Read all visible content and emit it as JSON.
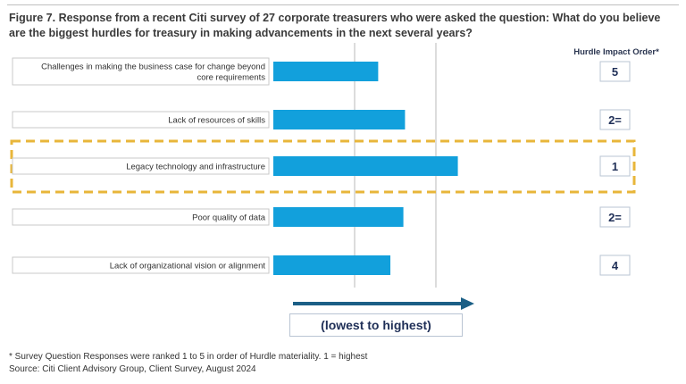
{
  "figure": {
    "title": "Figure 7. Response from a recent Citi survey of 27 corporate treasurers who were asked the question: What do you believe are the biggest hurdles for treasury in making advancements in the next several years?",
    "order_header": "Hurdle Impact Order*",
    "axis_caption": "(lowest to highest)",
    "footnote": "* Survey Question Responses were ranked 1 to 5 in order of Hurdle materiality. 1 = highest",
    "source": "Source: Citi Client Advisory Group, Client Survey, August 2024"
  },
  "colors": {
    "bar": "#12a0dc",
    "highlight": "#e8b63a",
    "arrow": "#1b5f86",
    "grid": "#b8b8b8",
    "label_box_border": "#b9c4d3",
    "order_box_border": "#b9c4d3",
    "order_text": "#1f2f57"
  },
  "chart_data": {
    "type": "bar",
    "orientation": "horizontal",
    "categories": [
      "Challenges in making the business case for change beyond core requirements",
      "Lack of resources of skills",
      "Legacy technology and infrastructure",
      "Poor quality of data",
      "Lack of organizational vision or alignment"
    ],
    "category_lines": [
      [
        "Challenges in making the business case for change beyond",
        "core requirements"
      ],
      [
        "Lack of resources of skills"
      ],
      [
        "Legacy technology and infrastructure"
      ],
      [
        "Poor quality of data"
      ],
      [
        "Lack of organizational vision or alignment"
      ]
    ],
    "values": [
      1.29,
      1.62,
      2.27,
      1.6,
      1.44
    ],
    "xlim": [
      0,
      4
    ],
    "grid": "vertical",
    "gridlines_at": [
      1,
      2
    ],
    "impact_order": [
      "5",
      "2=",
      "1",
      "2=",
      "4"
    ],
    "highlighted_category": "Legacy technology and infrastructure",
    "xlabel": "(lowest to highest)",
    "ylabel": "",
    "title": "Figure 7. Response from a recent Citi survey of 27 corporate treasurers who were asked the question: What do you believe are the biggest hurdles for treasury in making advancements in the next several years?"
  }
}
